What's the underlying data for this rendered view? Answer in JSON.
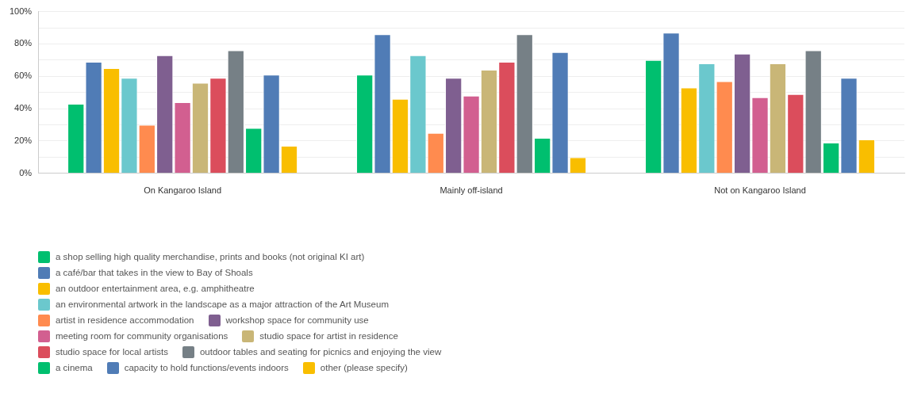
{
  "chart_data": {
    "type": "bar",
    "categories": [
      "On Kangaroo Island",
      "Mainly off-island",
      "Not on Kangaroo Island"
    ],
    "series": [
      {
        "name": "a shop selling high quality merchandise, prints and books (not original KI art)",
        "color": "#00bf6f",
        "values": [
          43,
          61,
          70
        ]
      },
      {
        "name": "a café/bar that takes in the view to Bay of Shoals",
        "color": "#507cb6",
        "values": [
          69,
          86,
          87
        ]
      },
      {
        "name": "an outdoor entertainment area, e.g. amphitheatre",
        "color": "#f9be00",
        "values": [
          65,
          46,
          53
        ]
      },
      {
        "name": "an environmental artwork in the landscape as a major attraction of the Art Museum",
        "color": "#6bc8cd",
        "values": [
          59,
          73,
          68
        ]
      },
      {
        "name": "artist in residence accommodation",
        "color": "#ff8b4f",
        "values": [
          30,
          25,
          57
        ]
      },
      {
        "name": "workshop space for community use",
        "color": "#7f5f90",
        "values": [
          73,
          59,
          74
        ]
      },
      {
        "name": "meeting room for community organisations",
        "color": "#d25f90",
        "values": [
          44,
          48,
          47
        ]
      },
      {
        "name": "studio space for artist in residence",
        "color": "#c9b677",
        "values": [
          56,
          64,
          68
        ]
      },
      {
        "name": "studio space for local artists",
        "color": "#db4d5c",
        "values": [
          59,
          69,
          49
        ]
      },
      {
        "name": "outdoor tables and seating for picnics and enjoying the view",
        "color": "#768086",
        "values": [
          76,
          86,
          76
        ]
      },
      {
        "name": "a cinema",
        "color": "#00bf6f",
        "values": [
          28,
          22,
          19
        ]
      },
      {
        "name": "capacity to hold functions/events indoors",
        "color": "#507cb6",
        "values": [
          61,
          75,
          59
        ]
      },
      {
        "name": "other (please specify)",
        "color": "#f9be00",
        "values": [
          17,
          10,
          21
        ]
      }
    ],
    "ylim": [
      0,
      100
    ],
    "yticks": [
      {
        "value": 0,
        "label": "0%"
      },
      {
        "value": 10,
        "label": null
      },
      {
        "value": 20,
        "label": "20%"
      },
      {
        "value": 30,
        "label": null
      },
      {
        "value": 40,
        "label": "40%"
      },
      {
        "value": 50,
        "label": null
      },
      {
        "value": 60,
        "label": "60%"
      },
      {
        "value": 70,
        "label": null
      },
      {
        "value": 80,
        "label": "80%"
      },
      {
        "value": 90,
        "label": null
      },
      {
        "value": 100,
        "label": "100%"
      }
    ],
    "grid": "y",
    "legend": "bottom"
  }
}
